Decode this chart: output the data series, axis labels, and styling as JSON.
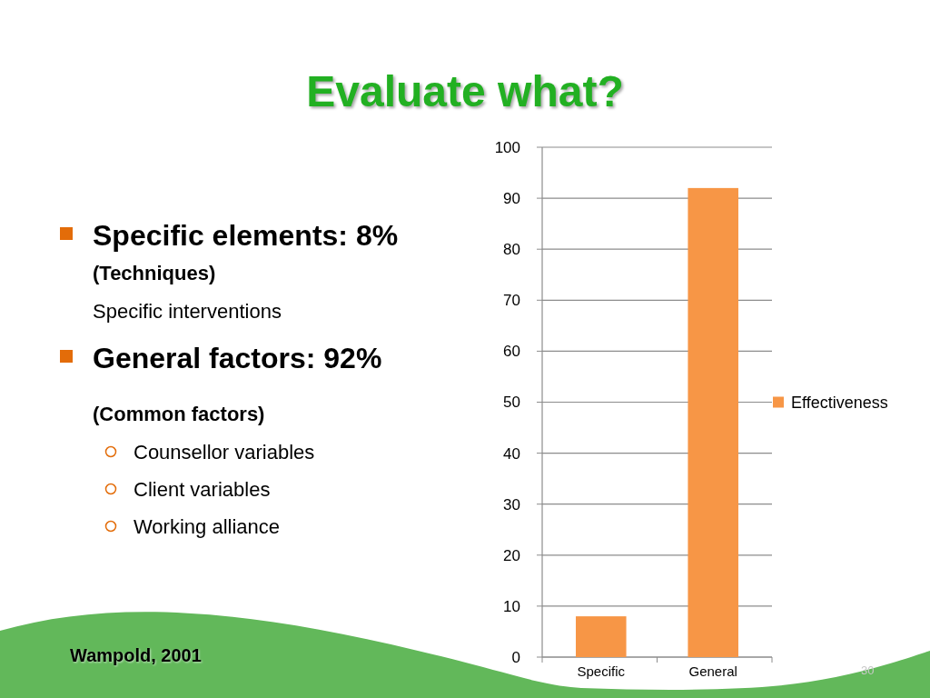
{
  "chart_data": {
    "type": "bar",
    "title": "Evaluate what?",
    "categories": [
      "Specific",
      "General"
    ],
    "series": [
      {
        "name": "Effectiveness",
        "color": "#f79646",
        "values": [
          8,
          92
        ]
      }
    ],
    "ylim": [
      0,
      100
    ],
    "yticks": [
      0,
      10,
      20,
      30,
      40,
      50,
      60,
      70,
      80,
      90,
      100
    ],
    "grid": "y",
    "legend": "right",
    "annotations": [
      "Specific elements: 8%",
      "(Techniques)",
      "Specific interventions",
      "General factors: 92%",
      "(Common factors)",
      "Counsellor variables",
      "Client variables",
      "Working alliance",
      "Wampold, 2001",
      "30"
    ]
  }
}
